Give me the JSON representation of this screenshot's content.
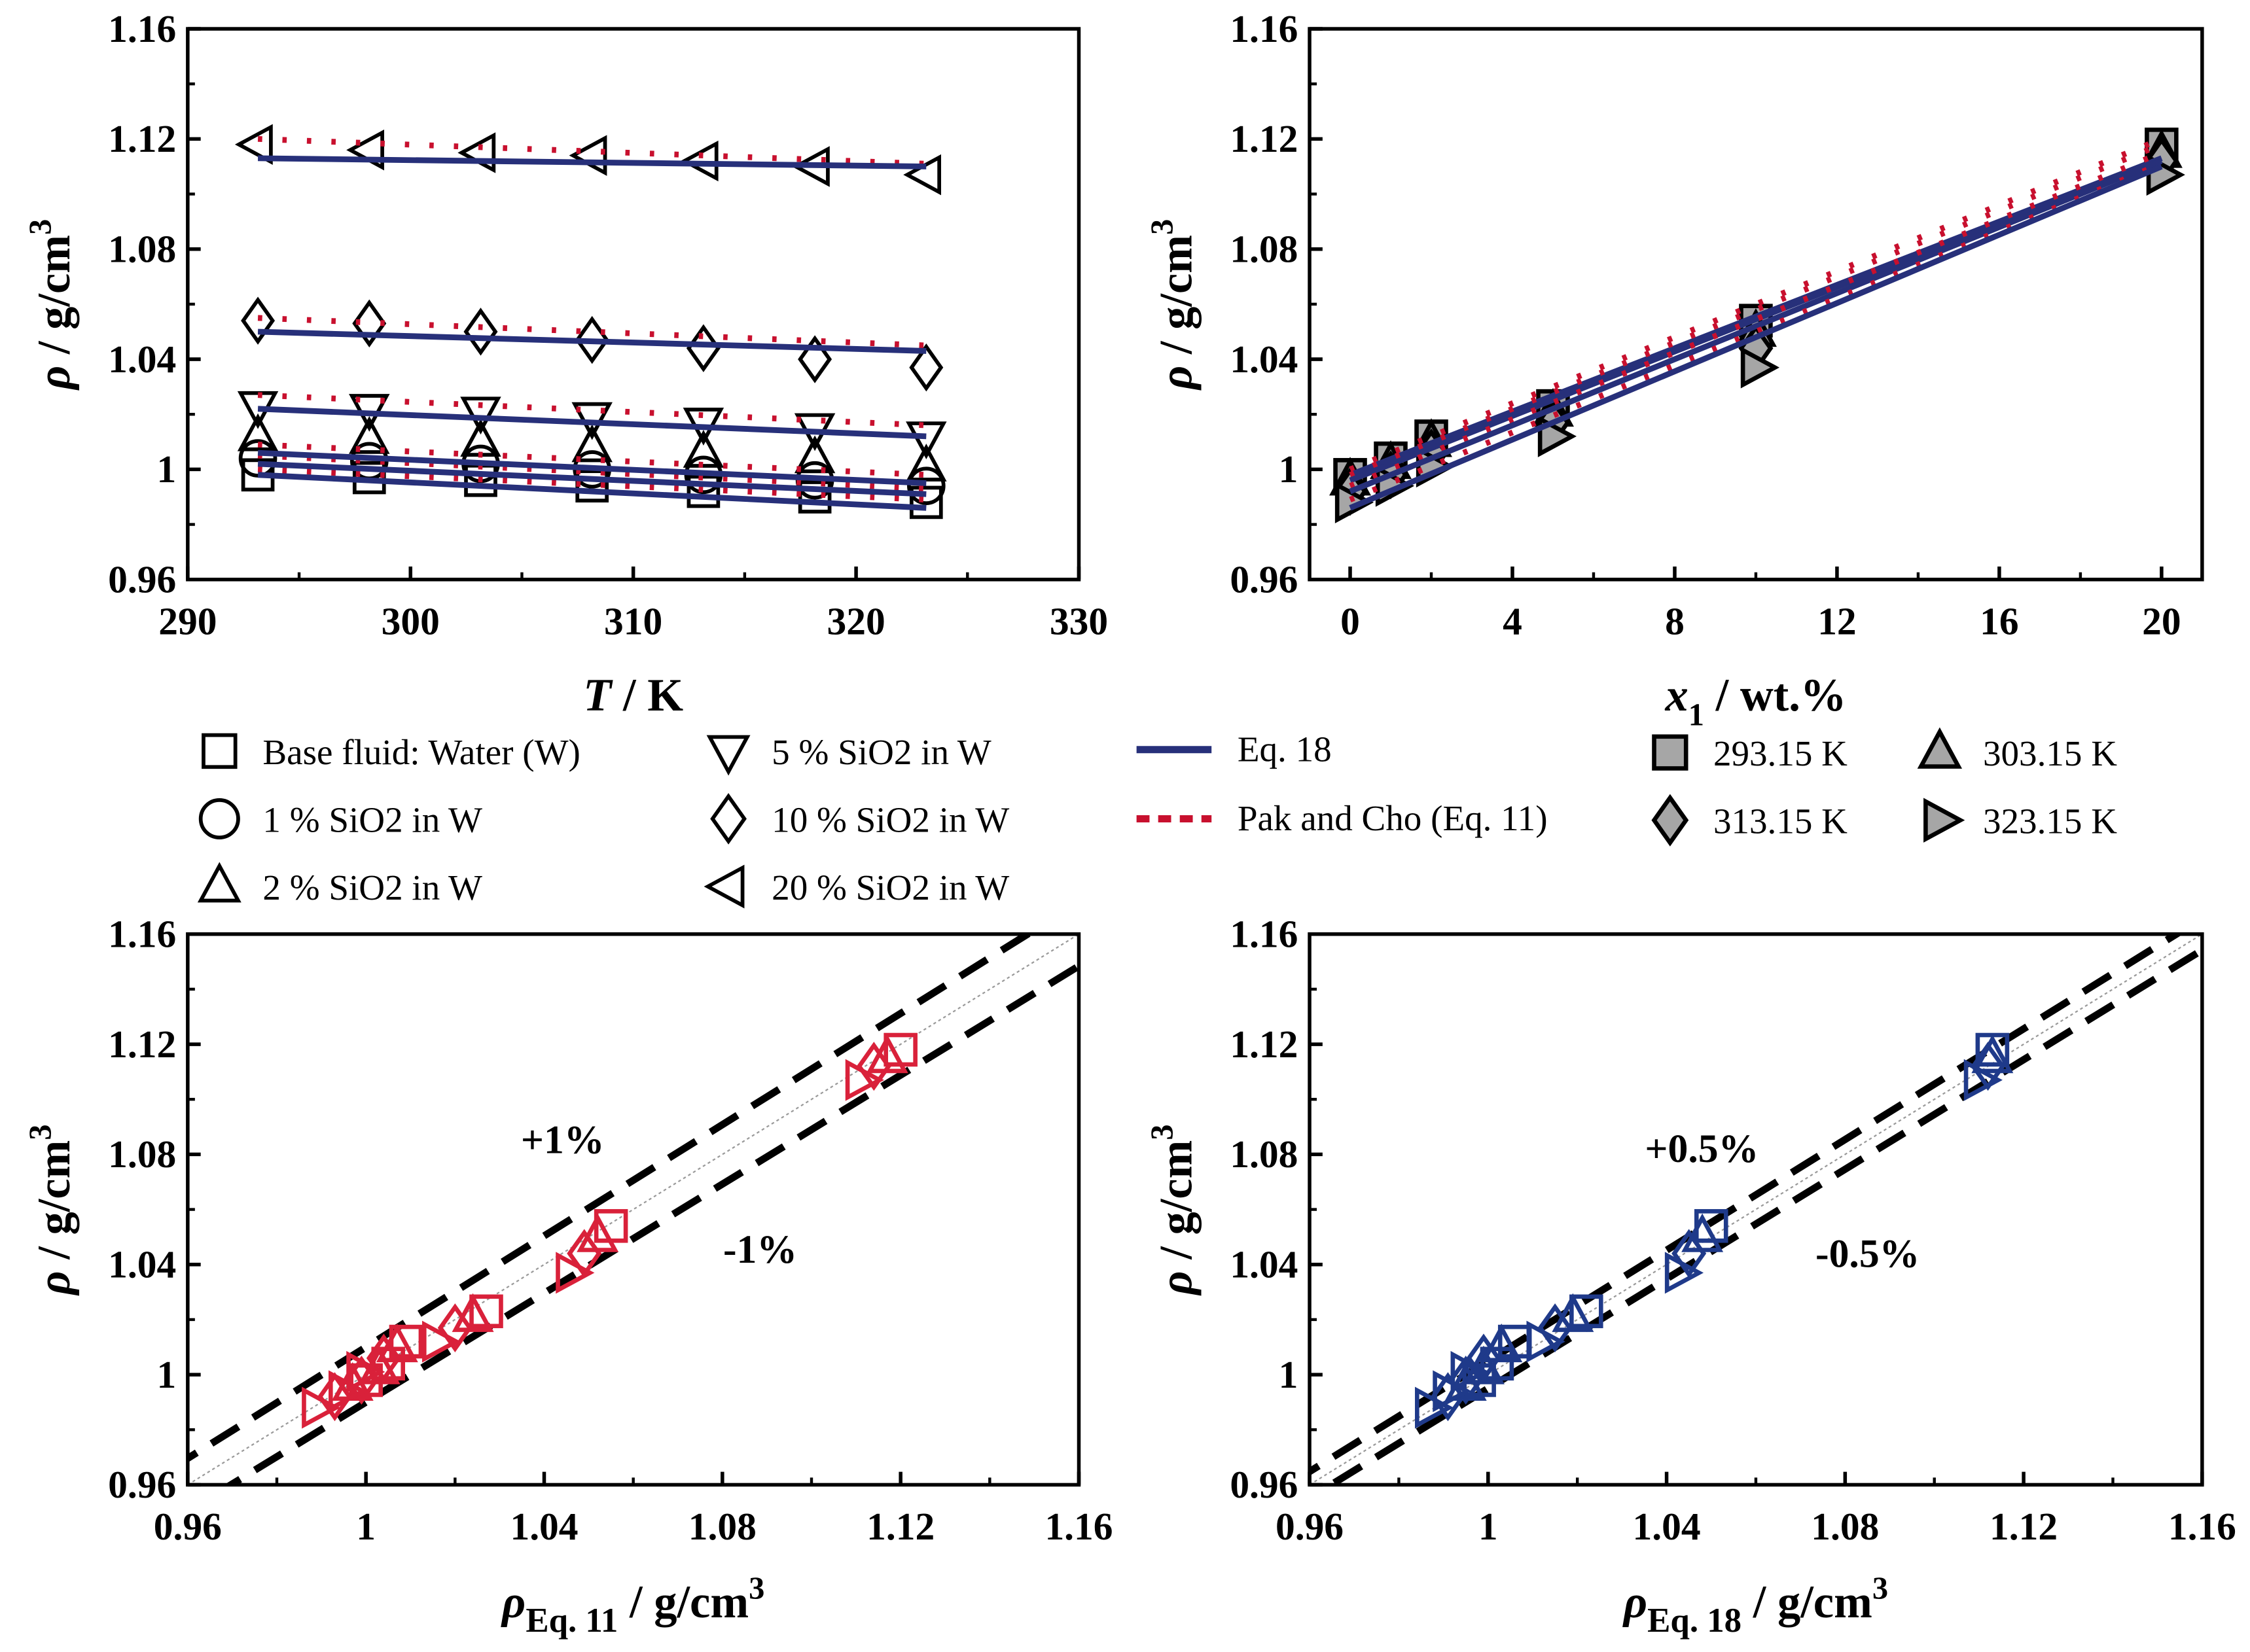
{
  "colors": {
    "eq18": "#27307a",
    "pak_cho": "#c8102e",
    "marker_black": "#000000",
    "marker_gray": "#a6a6a6",
    "parity_red": "#d9213a",
    "parity_blue": "#1f3a8a"
  },
  "chart_data": [
    {
      "id": "density-vs-temperature",
      "type": "scatter",
      "xlabel": "T / K",
      "ylabel": "ρ / g/cm3",
      "xlim": [
        290,
        330
      ],
      "ylim": [
        0.96,
        1.16
      ],
      "xticks": [
        "290",
        "300",
        "310",
        "320",
        "330"
      ],
      "yticks": [
        "0.96",
        "1",
        "1.04",
        "1.08",
        "1.12",
        "1.16"
      ],
      "x": [
        293.15,
        298.15,
        303.15,
        308.15,
        313.15,
        318.15,
        323.15
      ],
      "series": [
        {
          "name": "Base fluid: Water (W)",
          "marker": "square",
          "values": [
            0.998,
            0.997,
            0.996,
            0.994,
            0.992,
            0.99,
            0.988
          ],
          "eq18": [
            0.998,
            0.986
          ],
          "eq11": [
            1.0,
            0.989
          ]
        },
        {
          "name": "1 % SiO2 in W",
          "marker": "circle",
          "values": [
            1.004,
            1.003,
            1.002,
            1.0,
            0.998,
            0.996,
            0.994
          ],
          "eq18": [
            1.002,
            0.991
          ],
          "eq11": [
            1.005,
            0.993
          ]
        },
        {
          "name": "2 % SiO2 in W",
          "marker": "triangle-up",
          "values": [
            1.012,
            1.011,
            1.01,
            1.008,
            1.006,
            1.004,
            1.001
          ],
          "eq18": [
            1.006,
            0.995
          ],
          "eq11": [
            1.009,
            0.998
          ]
        },
        {
          "name": "5 % SiO2 in W",
          "marker": "triangle-down",
          "values": [
            1.023,
            1.022,
            1.021,
            1.019,
            1.017,
            1.015,
            1.012
          ],
          "eq18": [
            1.022,
            1.012
          ],
          "eq11": [
            1.027,
            1.016
          ]
        },
        {
          "name": "10 % SiO2 in W",
          "marker": "diamond",
          "values": [
            1.054,
            1.053,
            1.05,
            1.047,
            1.044,
            1.04,
            1.037
          ],
          "eq18": [
            1.05,
            1.043
          ],
          "eq11": [
            1.055,
            1.045
          ]
        },
        {
          "name": "20 % SiO2 in W",
          "marker": "triangle-left",
          "values": [
            1.118,
            1.116,
            1.115,
            1.114,
            1.112,
            1.11,
            1.107
          ],
          "eq18": [
            1.113,
            1.11
          ],
          "eq11": [
            1.12,
            1.111
          ]
        }
      ]
    },
    {
      "id": "density-vs-concentration",
      "type": "scatter",
      "xlabel": "x1 / wt.%",
      "ylabel": "ρ / g/cm3",
      "xlim": [
        -1,
        21
      ],
      "ylim": [
        0.96,
        1.16
      ],
      "xticks": [
        "0",
        "4",
        "8",
        "12",
        "16",
        "20"
      ],
      "yticks": [
        "0.96",
        "1",
        "1.04",
        "1.08",
        "1.12",
        "1.16"
      ],
      "x": [
        0,
        1,
        2,
        5,
        10,
        20
      ],
      "series": [
        {
          "name": "293.15 K",
          "marker": "square",
          "values": [
            0.998,
            1.004,
            1.012,
            1.023,
            1.054,
            1.118
          ],
          "eq18": [
            0.998,
            1.113
          ],
          "eq11": [
            1.0,
            1.12
          ]
        },
        {
          "name": "303.15 K",
          "marker": "triangle-up",
          "values": [
            0.996,
            1.002,
            1.01,
            1.021,
            1.05,
            1.115
          ],
          "eq18": [
            0.996,
            1.113
          ],
          "eq11": [
            0.998,
            1.118
          ]
        },
        {
          "name": "313.15 K",
          "marker": "diamond",
          "values": [
            0.992,
            0.998,
            1.006,
            1.017,
            1.044,
            1.112
          ],
          "eq18": [
            0.992,
            1.112
          ],
          "eq11": [
            0.994,
            1.115
          ]
        },
        {
          "name": "323.15 K",
          "marker": "triangle-right",
          "values": [
            0.988,
            0.994,
            1.001,
            1.012,
            1.037,
            1.107
          ],
          "eq18": [
            0.986,
            1.11
          ],
          "eq11": [
            0.989,
            1.111
          ]
        }
      ]
    },
    {
      "id": "parity-eq11",
      "type": "scatter",
      "xlabel": "ρEq. 11 / g/cm3",
      "ylabel": "ρ / g/cm3",
      "xlim": [
        0.96,
        1.16
      ],
      "ylim": [
        0.96,
        1.16
      ],
      "xticks": [
        "0.96",
        "1",
        "1.04",
        "1.08",
        "1.12",
        "1.16"
      ],
      "yticks": [
        "0.96",
        "1",
        "1.04",
        "1.08",
        "1.12",
        "1.16"
      ],
      "bands": {
        "upper": "+1%",
        "lower": "-1%",
        "fraction": 0.01
      },
      "series": [
        {
          "name": "293.15 K",
          "marker": "square",
          "x": [
            1.0,
            1.005,
            1.009,
            1.027,
            1.055,
            1.12
          ],
          "y": [
            0.998,
            1.004,
            1.012,
            1.023,
            1.054,
            1.118
          ]
        },
        {
          "name": "303.15 K",
          "marker": "triangle-up",
          "x": [
            0.997,
            1.003,
            1.007,
            1.024,
            1.052,
            1.117
          ],
          "y": [
            0.996,
            1.002,
            1.01,
            1.021,
            1.05,
            1.115
          ]
        },
        {
          "name": "313.15 K",
          "marker": "diamond",
          "x": [
            0.993,
            0.999,
            1.004,
            1.02,
            1.049,
            1.114
          ],
          "y": [
            0.992,
            0.998,
            1.006,
            1.017,
            1.044,
            1.112
          ]
        },
        {
          "name": "323.15 K",
          "marker": "triangle-right",
          "x": [
            0.989,
            0.995,
            0.999,
            1.016,
            1.046,
            1.111
          ],
          "y": [
            0.988,
            0.994,
            1.001,
            1.012,
            1.037,
            1.107
          ]
        }
      ]
    },
    {
      "id": "parity-eq18",
      "type": "scatter",
      "xlabel": "ρEq. 18 / g/cm3",
      "ylabel": "ρ / g/cm3",
      "xlim": [
        0.96,
        1.16
      ],
      "ylim": [
        0.96,
        1.16
      ],
      "xticks": [
        "0.96",
        "1",
        "1.04",
        "1.08",
        "1.12",
        "1.16"
      ],
      "yticks": [
        "0.96",
        "1",
        "1.04",
        "1.08",
        "1.12",
        "1.16"
      ],
      "bands": {
        "upper": "+0.5%",
        "lower": "-0.5%",
        "fraction": 0.005
      },
      "series": [
        {
          "name": "293.15 K",
          "marker": "square",
          "x": [
            0.998,
            1.002,
            1.006,
            1.022,
            1.05,
            1.113
          ],
          "y": [
            0.998,
            1.004,
            1.012,
            1.023,
            1.054,
            1.118
          ]
        },
        {
          "name": "303.15 K",
          "marker": "triangle-up",
          "x": [
            0.995,
            0.999,
            1.003,
            1.019,
            1.048,
            1.113
          ],
          "y": [
            0.996,
            1.002,
            1.01,
            1.021,
            1.05,
            1.115
          ]
        },
        {
          "name": "313.15 K",
          "marker": "diamond",
          "x": [
            0.991,
            0.995,
            0.999,
            1.015,
            1.045,
            1.112
          ],
          "y": [
            0.992,
            0.998,
            1.006,
            1.017,
            1.044,
            1.112
          ]
        },
        {
          "name": "323.15 K",
          "marker": "triangle-right",
          "x": [
            0.987,
            0.991,
            0.995,
            1.012,
            1.043,
            1.11
          ],
          "y": [
            0.988,
            0.994,
            1.001,
            1.012,
            1.037,
            1.107
          ]
        }
      ]
    }
  ],
  "legend": {
    "concentrations": [
      {
        "label": "Base fluid: Water (W)",
        "marker": "square"
      },
      {
        "label": "1 % SiO2 in W",
        "marker": "circle"
      },
      {
        "label": "2 % SiO2 in W",
        "marker": "triangle-up"
      },
      {
        "label": "5 % SiO2 in W",
        "marker": "triangle-down"
      },
      {
        "label": "10 % SiO2 in W",
        "marker": "diamond"
      },
      {
        "label": "20 % SiO2 in W",
        "marker": "triangle-left"
      }
    ],
    "models": [
      {
        "label": "Eq. 18",
        "style": "solid"
      },
      {
        "label": "Pak and Cho (Eq. 11)",
        "style": "dotted"
      }
    ],
    "temperatures": [
      {
        "label": "293.15 K",
        "marker": "square"
      },
      {
        "label": "303.15 K",
        "marker": "triangle-up"
      },
      {
        "label": "313.15 K",
        "marker": "diamond"
      },
      {
        "label": "323.15 K",
        "marker": "triangle-right"
      }
    ]
  }
}
